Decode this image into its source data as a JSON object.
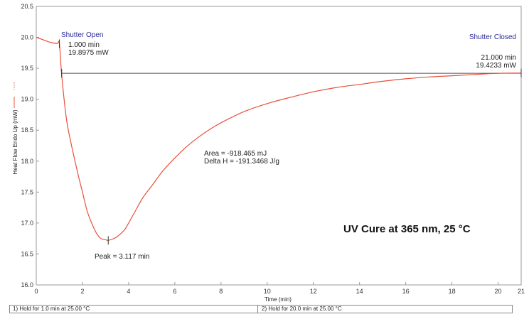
{
  "chart_data": {
    "type": "line",
    "xlabel": "Time (min)",
    "ylabel": "Heat Flow Endo Up (mW)",
    "xlim": [
      0,
      21
    ],
    "ylim": [
      16.0,
      20.5
    ],
    "x_ticks": [
      0,
      2,
      4,
      6,
      8,
      10,
      12,
      14,
      16,
      18,
      20,
      21
    ],
    "y_ticks": [
      16.0,
      16.5,
      17.0,
      17.5,
      18.0,
      18.5,
      19.0,
      19.5,
      20.0,
      20.5
    ],
    "series": [
      {
        "name": "Heat Flow",
        "color": "#e8503a",
        "x": [
          0,
          0.3,
          0.6,
          0.9,
          1.0,
          1.1,
          1.3,
          1.5,
          1.8,
          2.0,
          2.2,
          2.4,
          2.6,
          2.8,
          3.0,
          3.117,
          3.3,
          3.5,
          3.8,
          4.0,
          4.3,
          4.6,
          5.0,
          5.5,
          6.0,
          6.5,
          7.0,
          7.5,
          8.0,
          9.0,
          10.0,
          11.0,
          12.0,
          13.0,
          14.0,
          15.0,
          16.0,
          17.0,
          18.0,
          19.0,
          20.0,
          21.0
        ],
        "values": [
          20.0,
          19.96,
          19.92,
          19.9,
          19.9,
          19.4,
          18.7,
          18.3,
          17.8,
          17.5,
          17.2,
          17.0,
          16.84,
          16.75,
          16.73,
          16.72,
          16.74,
          16.78,
          16.88,
          17.0,
          17.2,
          17.4,
          17.6,
          17.85,
          18.05,
          18.23,
          18.38,
          18.51,
          18.62,
          18.8,
          18.93,
          19.03,
          19.12,
          19.19,
          19.24,
          19.29,
          19.33,
          19.36,
          19.38,
          19.4,
          19.42,
          19.4233
        ]
      }
    ],
    "baseline": {
      "x": [
        1.1,
        21.0
      ],
      "values": [
        19.42,
        19.42
      ]
    },
    "markers": [
      {
        "name": "shutter-open-marker",
        "x": 1.0,
        "y": 19.8975
      },
      {
        "name": "shutter-closed-marker",
        "x": 21.0,
        "y": 19.4233
      },
      {
        "name": "baseline-start-marker",
        "x": 1.1,
        "y": 19.42
      },
      {
        "name": "peak-marker",
        "x": 3.117,
        "y": 16.72
      }
    ],
    "annotations": {
      "shutter_open": "Shutter Open",
      "shutter_open_time": "1.000 min",
      "shutter_open_value": "19.8975 mW",
      "shutter_closed": "Shutter Closed",
      "shutter_closed_time": "21.000 min",
      "shutter_closed_value": "19.4233 mW",
      "area": "Area = -918.465 mJ",
      "delta_h": "Delta H = -191.3468 J/g",
      "peak": "Peak = 3.117 min",
      "title": "UV Cure at 365 nm, 25 °C"
    }
  },
  "footer": {
    "step1": "1)  Hold for 1.0 min at 25.00 °C",
    "step2": "2)   Hold for 20.0 min at 25.00 °C"
  }
}
